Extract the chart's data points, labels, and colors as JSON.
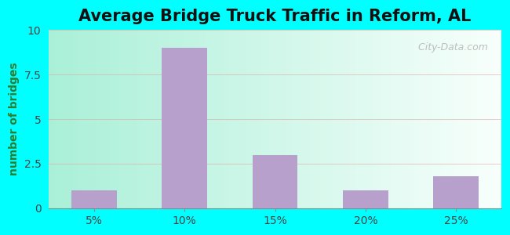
{
  "title": "Average Bridge Truck Traffic in Reform, AL",
  "categories": [
    "5%",
    "10%",
    "15%",
    "20%",
    "25%"
  ],
  "values": [
    1.0,
    9.0,
    3.0,
    1.0,
    1.8
  ],
  "bar_color": "#b8a0cc",
  "ylabel": "number of bridges",
  "ylim": [
    0,
    10
  ],
  "yticks": [
    0,
    2.5,
    5,
    7.5,
    10
  ],
  "title_fontsize": 15,
  "axis_label_color": "#2e7d32",
  "tick_label_color": "#444444",
  "grad_left": "#aaf0d8",
  "grad_right": "#f0faf8",
  "outer_bg": "#00ffff",
  "watermark": "  City-Data.com",
  "bar_width": 0.5
}
